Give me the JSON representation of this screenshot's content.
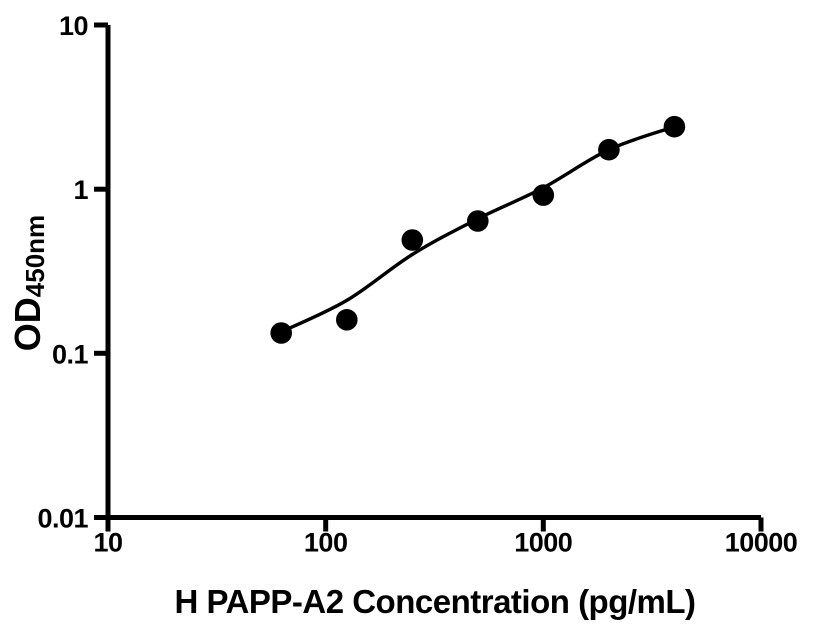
{
  "chart_data": {
    "type": "scatter",
    "title": "",
    "xlabel": "H PAPP-A2 Concentration (pg/mL)",
    "ylabel_main": "OD",
    "ylabel_sub": "450nm",
    "x_scale": "log10",
    "y_scale": "log10",
    "xlim": [
      10,
      10000
    ],
    "ylim": [
      0.01,
      10
    ],
    "grid": false,
    "legend": "none",
    "x_ticks": [
      {
        "value": 10,
        "label": "10"
      },
      {
        "value": 100,
        "label": "100"
      },
      {
        "value": 1000,
        "label": "1000"
      },
      {
        "value": 10000,
        "label": "10000"
      }
    ],
    "y_ticks": [
      {
        "value": 10,
        "label": "10"
      },
      {
        "value": 1,
        "label": "1"
      },
      {
        "value": 0.1,
        "label": "0.1"
      },
      {
        "value": 0.01,
        "label": "0.01"
      }
    ],
    "series": [
      {
        "name": "fitted-curve",
        "kind": "line",
        "color": "#000000",
        "points": [
          [
            62.5,
            0.135
          ],
          [
            125,
            0.21
          ],
          [
            250,
            0.4
          ],
          [
            500,
            0.66
          ],
          [
            1000,
            1.02
          ],
          [
            2000,
            1.74
          ],
          [
            4000,
            2.4
          ]
        ]
      },
      {
        "name": "standard-points",
        "kind": "scatter",
        "marker": "filled-circle",
        "color": "#000000",
        "points": [
          [
            62.5,
            0.133
          ],
          [
            125,
            0.16
          ],
          [
            250,
            0.49
          ],
          [
            500,
            0.64
          ],
          [
            1000,
            0.92
          ],
          [
            2000,
            1.74
          ],
          [
            4000,
            2.4
          ]
        ]
      }
    ]
  },
  "colors": {
    "foreground": "#000000",
    "background": "#ffffff"
  }
}
